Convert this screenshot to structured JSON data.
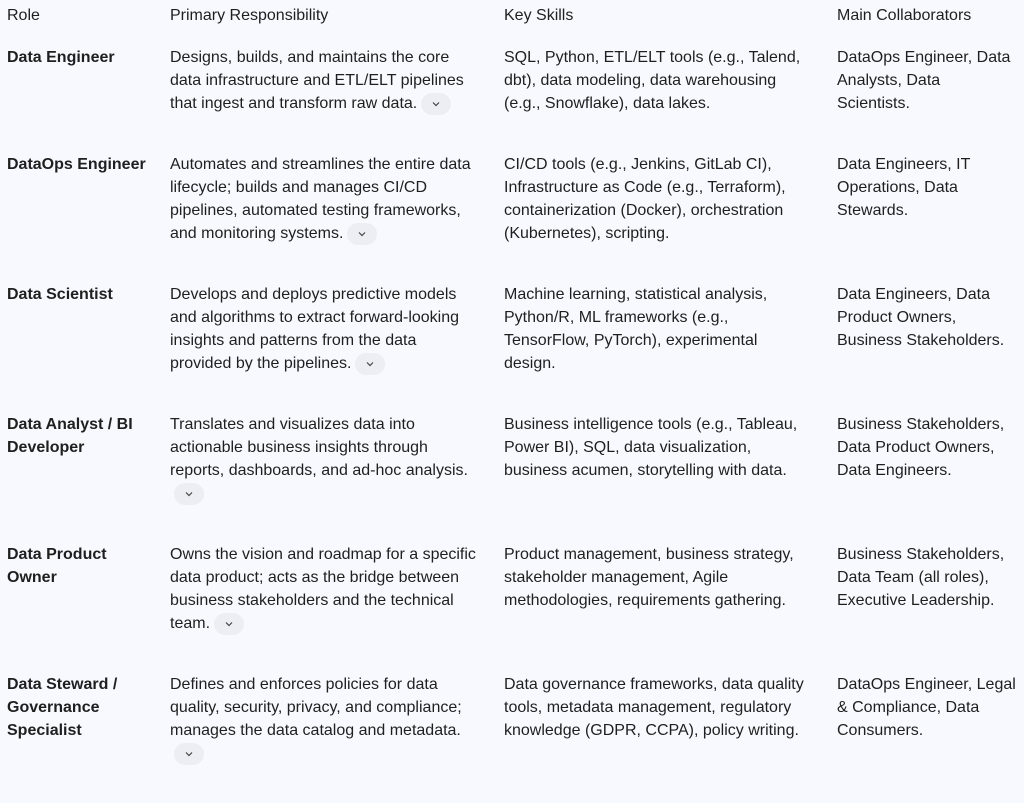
{
  "headers": [
    "Role",
    "Primary Responsibility",
    "Key Skills",
    "Main Collaborators"
  ],
  "rows": [
    {
      "role": "Data Engineer",
      "responsibility": "Designs, builds, and maintains the core data infrastructure and ETL/ELT pipelines that ingest and transform raw data.",
      "skills": "SQL, Python, ETL/ELT tools (e.g., Talend, dbt), data modeling, data warehousing (e.g., Snowflake), data lakes.",
      "collaborators": "DataOps Engineer, Data Analysts, Data Scientists."
    },
    {
      "role": "DataOps Engineer",
      "responsibility": "Automates and streamlines the entire data lifecycle; builds and manages CI/CD pipelines, automated testing frameworks, and monitoring systems.",
      "skills": "CI/CD tools (e.g., Jenkins, GitLab CI), Infrastructure as Code (e.g., Terraform), containerization (Docker), orchestration (Kubernetes), scripting.",
      "collaborators": "Data Engineers, IT Operations, Data Stewards."
    },
    {
      "role": "Data Scientist",
      "responsibility": "Develops and deploys predictive models and algorithms to extract forward-looking insights and patterns from the data provided by the pipelines.",
      "skills": "Machine learning, statistical analysis, Python/R, ML frameworks (e.g., TensorFlow, PyTorch), experimental design.",
      "collaborators": "Data Engineers, Data Product Owners, Business Stakeholders."
    },
    {
      "role": "Data Analyst / BI Developer",
      "responsibility": "Translates and visualizes data into actionable business insights through reports, dashboards, and ad-hoc analysis.",
      "skills": "Business intelligence tools (e.g., Tableau, Power BI), SQL, data visualization, business acumen, storytelling with data.",
      "collaborators": "Business Stakeholders, Data Product Owners, Data Engineers."
    },
    {
      "role": "Data Product Owner",
      "responsibility": "Owns the vision and roadmap for a specific data product; acts as the bridge between business stakeholders and the technical team.",
      "skills": "Product management, business strategy, stakeholder management, Agile methodologies, requirements gathering.",
      "collaborators": "Business Stakeholders, Data Team (all roles), Executive Leadership."
    },
    {
      "role": "Data Steward / Governance Specialist",
      "responsibility": "Defines and enforces policies for data quality, security, privacy, and compliance; manages the data catalog and metadata.",
      "skills": "Data governance frameworks, data quality tools, metadata management, regulatory knowledge (GDPR, CCPA), policy writing.",
      "collaborators": "DataOps Engineer, Legal & Compliance, Data Consumers."
    }
  ],
  "icons": {
    "expand": "chevron-down-icon"
  }
}
